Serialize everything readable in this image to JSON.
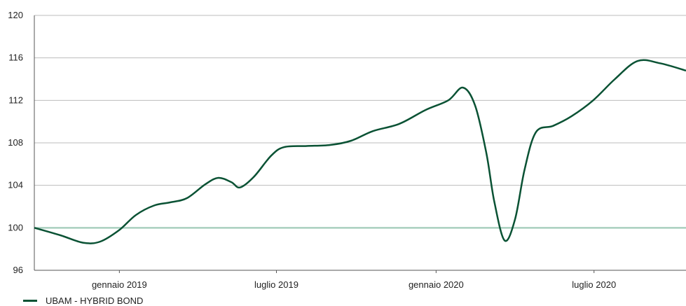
{
  "chart_data": {
    "type": "line",
    "title": "",
    "xlabel": "",
    "ylabel": "",
    "ylim": [
      96,
      120
    ],
    "yticks": [
      96,
      100,
      104,
      108,
      112,
      116,
      120
    ],
    "grid": true,
    "reference_line": 100,
    "xlim": [
      "2018-09-25",
      "2020-10-15"
    ],
    "xticks": [
      {
        "date": "2019-01-01",
        "label": "gennaio 2019"
      },
      {
        "date": "2019-07-01",
        "label": "luglio 2019"
      },
      {
        "date": "2020-01-01",
        "label": "gennaio 2020"
      },
      {
        "date": "2020-07-01",
        "label": "luglio 2020"
      }
    ],
    "legend_position": "bottom-left",
    "series": [
      {
        "name": "UBAM - HYBRID BOND",
        "color": "#0a5234",
        "points": [
          [
            "2018-09-25",
            100.0
          ],
          [
            "2018-10-25",
            99.3
          ],
          [
            "2018-11-20",
            98.6
          ],
          [
            "2018-12-10",
            98.7
          ],
          [
            "2019-01-01",
            99.8
          ],
          [
            "2019-01-20",
            101.2
          ],
          [
            "2019-02-10",
            102.1
          ],
          [
            "2019-03-01",
            102.4
          ],
          [
            "2019-03-20",
            102.8
          ],
          [
            "2019-04-10",
            104.1
          ],
          [
            "2019-04-25",
            104.7
          ],
          [
            "2019-05-10",
            104.3
          ],
          [
            "2019-05-20",
            103.8
          ],
          [
            "2019-06-05",
            104.8
          ],
          [
            "2019-06-25",
            106.8
          ],
          [
            "2019-07-10",
            107.6
          ],
          [
            "2019-08-05",
            107.7
          ],
          [
            "2019-09-01",
            107.8
          ],
          [
            "2019-09-25",
            108.2
          ],
          [
            "2019-10-20",
            109.1
          ],
          [
            "2019-11-20",
            109.8
          ],
          [
            "2019-12-20",
            111.1
          ],
          [
            "2020-01-15",
            112.0
          ],
          [
            "2020-02-01",
            113.2
          ],
          [
            "2020-02-15",
            111.5
          ],
          [
            "2020-02-28",
            107.0
          ],
          [
            "2020-03-08",
            102.5
          ],
          [
            "2020-03-20",
            98.8
          ],
          [
            "2020-04-01",
            100.8
          ],
          [
            "2020-04-12",
            105.5
          ],
          [
            "2020-04-25",
            109.0
          ],
          [
            "2020-05-15",
            109.6
          ],
          [
            "2020-06-05",
            110.5
          ],
          [
            "2020-06-30",
            112.0
          ],
          [
            "2020-07-25",
            114.0
          ],
          [
            "2020-08-20",
            115.7
          ],
          [
            "2020-09-15",
            115.5
          ],
          [
            "2020-10-15",
            114.8
          ]
        ]
      }
    ]
  }
}
